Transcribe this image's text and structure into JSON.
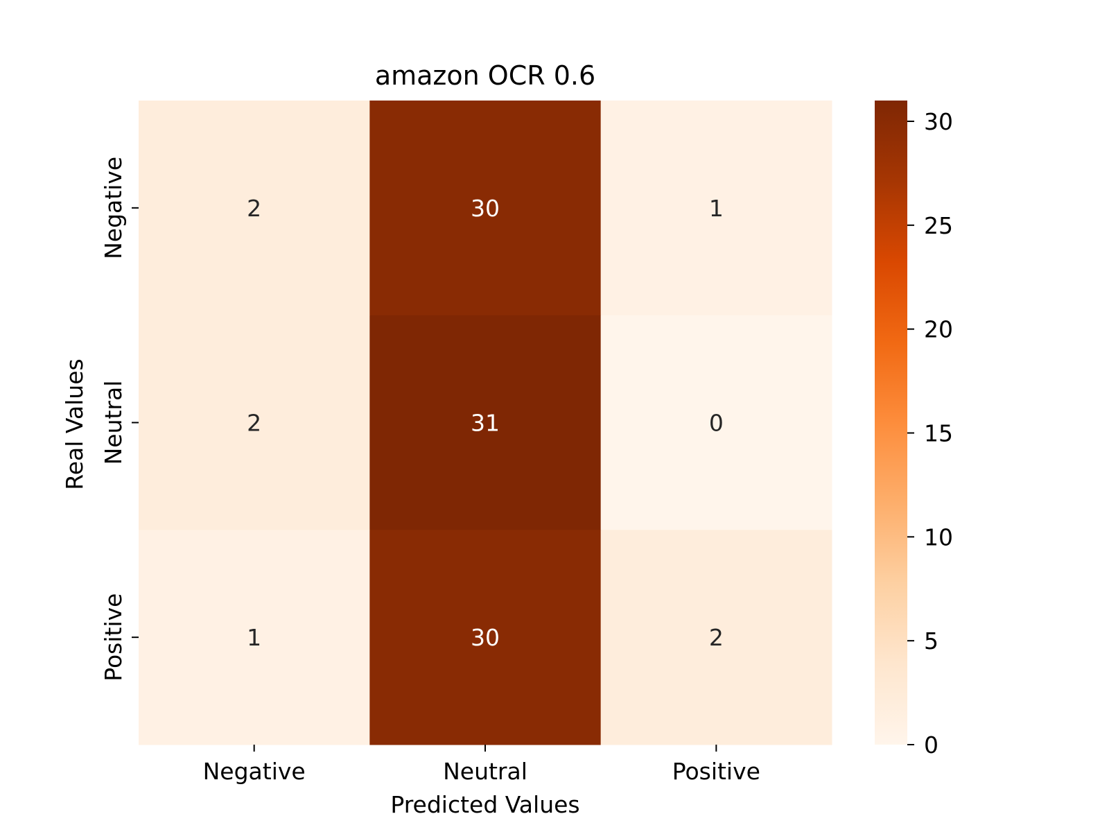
{
  "chart_data": {
    "type": "heatmap",
    "title": "amazon OCR 0.6",
    "xlabel": "Predicted Values",
    "ylabel": "Real Values",
    "x_categories": [
      "Negative",
      "Neutral",
      "Positive"
    ],
    "y_categories": [
      "Negative",
      "Neutral",
      "Positive"
    ],
    "values": [
      [
        2,
        30,
        1
      ],
      [
        2,
        31,
        0
      ],
      [
        1,
        30,
        2
      ]
    ],
    "colorbar": {
      "min": 0,
      "max": 31,
      "ticks": [
        0,
        5,
        10,
        15,
        20,
        25,
        30
      ],
      "colormap": "Oranges",
      "colors": [
        "#fff5eb",
        "#fee6ce",
        "#fdd0a2",
        "#fdae6b",
        "#fd8d3c",
        "#f16913",
        "#d94801",
        "#a63603",
        "#7f2704"
      ]
    },
    "annotation_colors": {
      "light_cell_text": "#262626",
      "dark_cell_text": "#ffffff"
    }
  }
}
